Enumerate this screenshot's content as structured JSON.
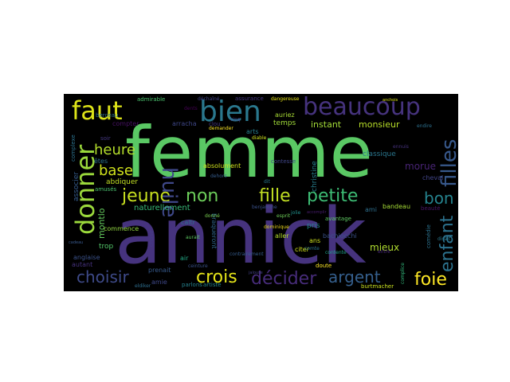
{
  "colors": {
    "page_background": "#ffffff",
    "cloud_background": "#000000"
  },
  "words": [
    {
      "text": "femme",
      "color": "#5ac864"
    },
    {
      "text": "annick",
      "color": "#46337e"
    },
    {
      "text": "beaucoup",
      "color": "#46337e"
    },
    {
      "text": "bien",
      "color": "#2a788e"
    },
    {
      "text": "faut",
      "color": "#dde318"
    },
    {
      "text": "donner",
      "color": "#9bd93c"
    },
    {
      "text": "fille",
      "color": "#c2df23"
    },
    {
      "text": "jeune",
      "color": "#c8e020"
    },
    {
      "text": "non",
      "color": "#6ccd5a"
    },
    {
      "text": "petite",
      "color": "#3dbc74"
    },
    {
      "text": "huile",
      "color": "#3f4889"
    },
    {
      "text": "filles",
      "color": "#38598c"
    },
    {
      "text": "bon",
      "color": "#25838e"
    },
    {
      "text": "enfant",
      "color": "#2c728e"
    },
    {
      "text": "heure",
      "color": "#b5de2b"
    },
    {
      "text": "base",
      "color": "#cfe11c"
    },
    {
      "text": "choisir",
      "color": "#3e4a89"
    },
    {
      "text": "crois",
      "color": "#e5e419"
    },
    {
      "text": "décider",
      "color": "#472c7a"
    },
    {
      "text": "argent",
      "color": "#355f8d"
    },
    {
      "text": "foie",
      "color": "#fde725"
    },
    {
      "text": "instant",
      "color": "#a2da37"
    },
    {
      "text": "monsieur",
      "color": "#b8de29"
    },
    {
      "text": "morue",
      "color": "#482475"
    },
    {
      "text": "mieux",
      "color": "#b0dd2f"
    },
    {
      "text": "temps",
      "color": "#a0da39"
    },
    {
      "text": "christine",
      "color": "#277f8e"
    },
    {
      "text": "classique",
      "color": "#2a768e"
    },
    {
      "text": "absolument",
      "color": "#cfe11c"
    },
    {
      "text": "naturellement",
      "color": "#38b977"
    },
    {
      "text": "montlo",
      "color": "#65cb5e"
    },
    {
      "text": "abdiquer",
      "color": "#c2df23"
    },
    {
      "text": "êtes",
      "color": "#2c728e"
    },
    {
      "text": "associer",
      "color": "#365c8d"
    },
    {
      "text": "commence",
      "color": "#93d741"
    },
    {
      "text": "anglaise",
      "color": "#3b528b"
    },
    {
      "text": "autant",
      "color": "#46327e"
    },
    {
      "text": "trop",
      "color": "#52c569"
    },
    {
      "text": "cheval",
      "color": "#414487"
    },
    {
      "text": "beauté",
      "color": "#481668"
    },
    {
      "text": "bandeau",
      "color": "#a5db36"
    },
    {
      "text": "comédie",
      "color": "#2c728e"
    },
    {
      "text": "bachiocchi",
      "color": "#3b528b"
    },
    {
      "text": "ans",
      "color": "#cde11d"
    },
    {
      "text": "pris",
      "color": "#24868e"
    },
    {
      "text": "citer",
      "color": "#d2e21b"
    },
    {
      "text": "aller",
      "color": "#b5de2b"
    },
    {
      "text": "avantage",
      "color": "#5ec962"
    },
    {
      "text": "contesse",
      "color": "#404688"
    },
    {
      "text": "arts",
      "color": "#277f8e"
    },
    {
      "text": "clou",
      "color": "#453781"
    },
    {
      "text": "arracha",
      "color": "#3f4788"
    },
    {
      "text": "compter",
      "color": "#471164"
    },
    {
      "text": "berceau",
      "color": "#2d708e"
    },
    {
      "text": "assurance",
      "color": "#453882"
    },
    {
      "text": "auriez",
      "color": "#a8db34"
    },
    {
      "text": "admirable",
      "color": "#4ac16d"
    },
    {
      "text": "déchaîné",
      "color": "#414487"
    },
    {
      "text": "dangereuse",
      "color": "#e7e419"
    },
    {
      "text": "braqueront",
      "color": "#31688e"
    },
    {
      "text": "caltr",
      "color": "#2e6d8e"
    },
    {
      "text": "air",
      "color": "#22a884"
    },
    {
      "text": "prenait",
      "color": "#375a8c"
    },
    {
      "text": "chose",
      "color": "#433e85"
    },
    {
      "text": "amie",
      "color": "#3f4889"
    },
    {
      "text": "parlons",
      "color": "#26828e"
    },
    {
      "text": "artiste",
      "color": "#24878e"
    },
    {
      "text": "doute",
      "color": "#fde725"
    },
    {
      "text": "burtmacher",
      "color": "#cae11f"
    },
    {
      "text": "complice",
      "color": "#32b67a"
    },
    {
      "text": "ami",
      "color": "#2e6f8e"
    },
    {
      "text": "entre",
      "color": "#482878"
    },
    {
      "text": "contente",
      "color": "#1fa088"
    },
    {
      "text": "comte",
      "color": "#2c738e"
    },
    {
      "text": "dominique",
      "color": "#ead61c"
    },
    {
      "text": "esprit",
      "color": "#6ece58"
    },
    {
      "text": "donné",
      "color": "#7ad151"
    },
    {
      "text": "dents",
      "color": "#440154"
    },
    {
      "text": "complexe",
      "color": "#2c728e"
    },
    {
      "text": "ennuis",
      "color": "#46327e"
    },
    {
      "text": "eldiker",
      "color": "#2e6e8e"
    },
    {
      "text": "dehors",
      "color": "#365d8d"
    },
    {
      "text": "benjamine",
      "color": "#3b528b"
    },
    {
      "text": "dit",
      "color": "#2a788e"
    },
    {
      "text": "cinq",
      "color": "#433d84"
    },
    {
      "text": "diable",
      "color": "#cfe11c"
    },
    {
      "text": "jolie",
      "color": "#21918c"
    },
    {
      "text": "soir",
      "color": "#453882"
    },
    {
      "text": "amusés",
      "color": "#4ac16d"
    },
    {
      "text": "aurait",
      "color": "#5ec962"
    },
    {
      "text": "demander",
      "color": "#fde725"
    },
    {
      "text": "contrairement",
      "color": "#365c8d"
    },
    {
      "text": "disait",
      "color": "#2a788e"
    },
    {
      "text": "anchois",
      "color": "#dde318"
    },
    {
      "text": "endire",
      "color": "#2d708e"
    },
    {
      "text": "accomplir",
      "color": "#481d6f"
    },
    {
      "text": "ceinture",
      "color": "#3b528b"
    },
    {
      "text": "jalouse",
      "color": "#433e85"
    },
    {
      "text": "cadeau",
      "color": "#38598c"
    }
  ]
}
